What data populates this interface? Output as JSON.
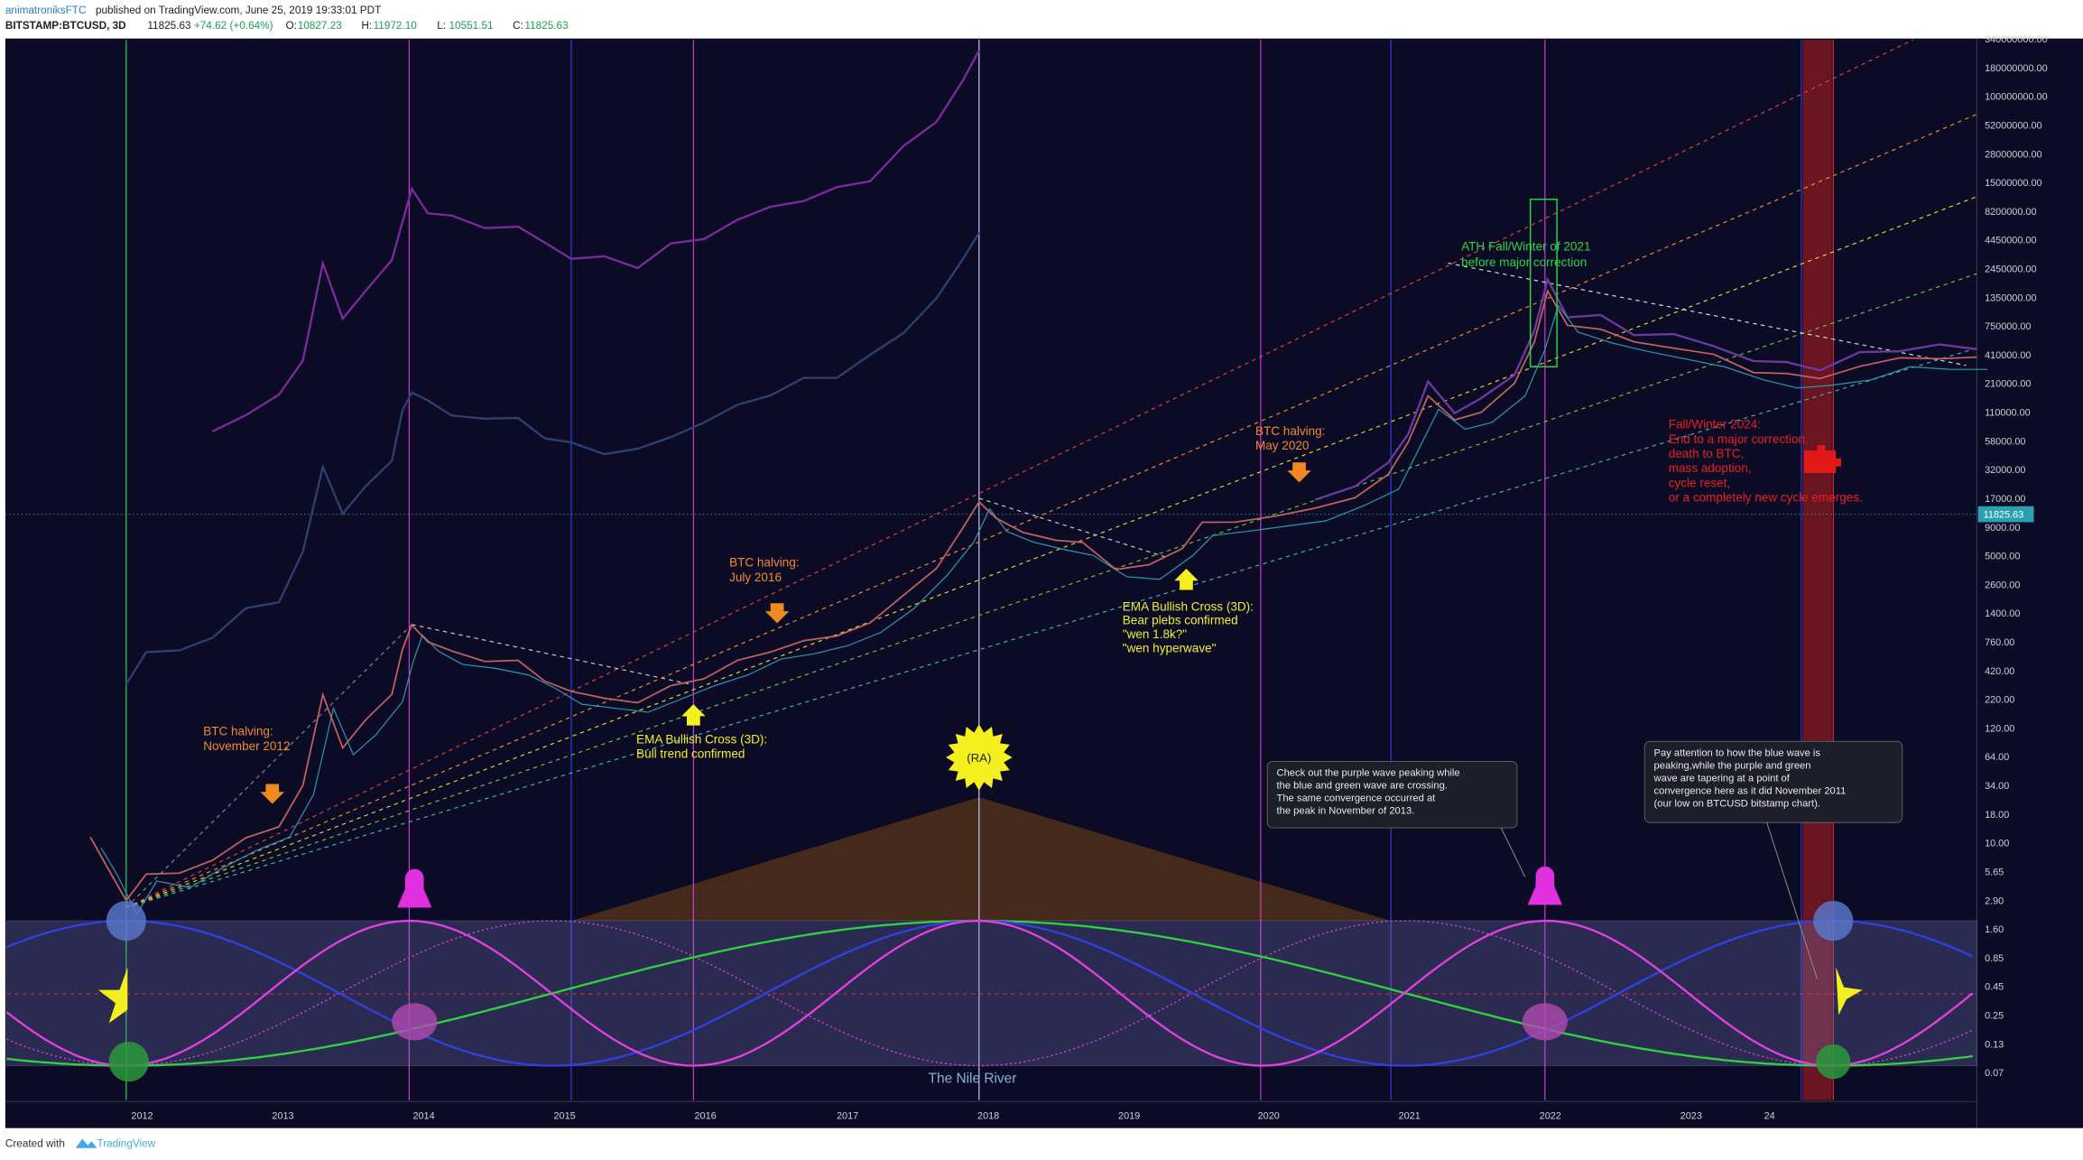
{
  "header": {
    "author": "animatroniksFTC",
    "published": "published on TradingView.com, June 25, 2019 19:33:01 PDT",
    "symbol": "BITSTAMP:BTCUSD, 3D",
    "price": "11825.63",
    "change": "+74.62 (+0.64%)",
    "ohlc": [
      {
        "label": "O:",
        "value": "10827.23"
      },
      {
        "label": "H:",
        "value": "11972.10"
      },
      {
        "label": "L:",
        "value": "10551.51"
      },
      {
        "label": "C:",
        "value": "11825.63"
      }
    ]
  },
  "price_axis": [
    "340000000.00",
    "180000000.00",
    "100000000.00",
    "52000000.00",
    "28000000.00",
    "15000000.00",
    "8200000.00",
    "4450000.00",
    "2450000.00",
    "1350000.00",
    "750000.00",
    "410000.00",
    "210000.00",
    "110000.00",
    "58000.00",
    "32000.00",
    "17000.00",
    "9000.00",
    "5000.00",
    "2600.00",
    "1400.00",
    "760.00",
    "420.00",
    "220.00",
    "120.00",
    "64.00",
    "34.00",
    "18.00",
    "10.00",
    "5.65",
    "2.90",
    "1.60",
    "0.85",
    "0.45",
    "0.25",
    "0.13",
    "0.07"
  ],
  "last_price": "11825.63",
  "time_axis": [
    "2012",
    "2013",
    "2014",
    "2015",
    "2016",
    "2017",
    "2018",
    "2019",
    "2020",
    "2021",
    "2022",
    "2023",
    "24"
  ],
  "annotations": [
    {
      "lines": [
        "ATH Fall/Winter of 2021",
        "before major correction"
      ]
    },
    {
      "lines": [
        "Fall/Winter 2024:",
        "End to a major correction,",
        "death to BTC,",
        "mass adoption,",
        "cycle reset,",
        "or a completely new cycle emerges."
      ]
    },
    {
      "lines": [
        "BTC halving:",
        "May 2020"
      ]
    },
    {
      "lines": [
        "BTC halving:",
        "July 2016"
      ]
    },
    {
      "lines": [
        "BTC halving:",
        "November 2012"
      ]
    },
    {
      "lines": [
        "EMA Bullish Cross (3D):",
        "Bear plebs confirmed",
        "\"wen 1.8k?\"",
        "\"wen hyperwave\""
      ]
    },
    {
      "lines": [
        "EMA Bullish Cross (3D):",
        "Bull trend confirmed"
      ]
    },
    {
      "lines": [
        "Check out the purple wave peaking while",
        "the blue and green wave are crossing.",
        "The same convergence occurred at",
        "the peak in November of 2013."
      ]
    },
    {
      "lines": [
        "Pay attention to how the blue wave is",
        "peaking,while the purple and  green",
        "wave are tapering at a point of",
        "convergence here as it did November 2011",
        "(our low on BTCUSD bitstamp chart)."
      ]
    }
  ],
  "sun_label": "(RA)",
  "panel_label": "The Nile River",
  "footer": {
    "created": "Created with",
    "brand": "TradingView"
  }
}
